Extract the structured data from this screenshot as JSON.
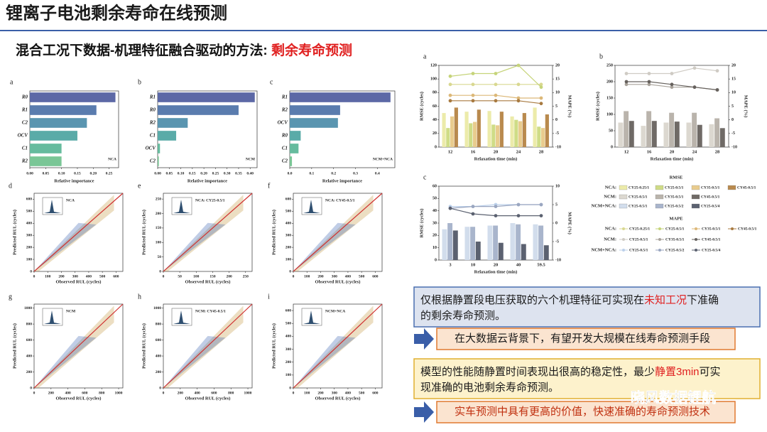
{
  "header": {
    "title": "锂离子电池剩余寿命在线预测"
  },
  "subtitle": {
    "main": "混合工况下数据-机理特征融合驱动的方法: ",
    "highlight": "剩余寿命预测"
  },
  "importance_xlabel": "Relative importance",
  "importance_panels": [
    {
      "letter": "a",
      "tag": "NCA",
      "features": [
        "R0",
        "R1",
        "C2",
        "OCV",
        "C1",
        "R2"
      ],
      "values": [
        0.27,
        0.21,
        0.18,
        0.15,
        0.1,
        0.1
      ],
      "colors": [
        "#5c68a6",
        "#5a7cae",
        "#5a95b0",
        "#5aaba8",
        "#66bb9e",
        "#7ac696"
      ],
      "xlim": [
        0,
        0.28
      ],
      "xticks": [
        {
          "value": 0,
          "label": "0.00"
        },
        {
          "value": 0.05,
          "label": "0.05"
        },
        {
          "value": 0.1,
          "label": "0.10"
        },
        {
          "value": 0.15,
          "label": "0.15"
        },
        {
          "value": 0.2,
          "label": "0.20"
        },
        {
          "value": 0.25,
          "label": "0.25"
        }
      ]
    },
    {
      "letter": "b",
      "tag": "NCM",
      "features": [
        "R1",
        "R0",
        "R2",
        "C1",
        "OCV",
        "C2"
      ],
      "values": [
        0.42,
        0.35,
        0.13,
        0.08,
        0.01,
        0.005
      ],
      "colors": [
        "#5c68a6",
        "#5a7cae",
        "#5a95b0",
        "#5aaba8",
        "#66bb9e",
        "#7ac696"
      ],
      "xlim": [
        0,
        0.43
      ],
      "xticks": [
        {
          "value": 0,
          "label": "0.00"
        },
        {
          "value": 0.05,
          "label": "0.05"
        },
        {
          "value": 0.1,
          "label": "0.10"
        },
        {
          "value": 0.15,
          "label": "0.15"
        },
        {
          "value": 0.2,
          "label": "0.20"
        },
        {
          "value": 0.25,
          "label": "0.25"
        },
        {
          "value": 0.3,
          "label": "0.30"
        },
        {
          "value": 0.35,
          "label": "0.35"
        },
        {
          "value": 0.4,
          "label": "0.40"
        }
      ]
    },
    {
      "letter": "c",
      "tag": "NCM+NCA",
      "features": [
        "R1",
        "R2",
        "OCV",
        "R0",
        "C1",
        "C2"
      ],
      "values": [
        0.46,
        0.23,
        0.22,
        0.05,
        0.04,
        0.01
      ],
      "colors": [
        "#5c68a6",
        "#5a7cae",
        "#5a95b0",
        "#5aaba8",
        "#66bb9e",
        "#7ac696"
      ],
      "xlim": [
        0,
        0.48
      ],
      "xticks": [
        {
          "value": 0,
          "label": "0.0"
        },
        {
          "value": 0.1,
          "label": "0.1"
        },
        {
          "value": 0.2,
          "label": "0.2"
        },
        {
          "value": 0.3,
          "label": "0.3"
        },
        {
          "value": 0.4,
          "label": "0.4"
        }
      ]
    }
  ],
  "scatter_axes": {
    "xlabel": "Observed RUL (cycles)",
    "ylabel": "Predicted RUL (cycles)"
  },
  "scatter_panels": [
    {
      "letter": "d",
      "tag": "NCA",
      "xlim": [
        0,
        650
      ],
      "ylim": [
        0,
        650
      ],
      "xticks": [
        0,
        100,
        200,
        300,
        400,
        500,
        600
      ],
      "yticks": [
        0,
        100,
        200,
        300,
        400,
        500,
        600
      ]
    },
    {
      "letter": "e",
      "tag": "NCA: CY25-0.5/1",
      "xlim": [
        0,
        270
      ],
      "ylim": [
        0,
        270
      ],
      "xticks": [
        0,
        50,
        100,
        150,
        200,
        250
      ],
      "yticks": [
        0,
        50,
        100,
        150,
        200,
        250
      ]
    },
    {
      "letter": "f",
      "tag": "NCA: CY45-0.5/1",
      "xlim": [
        0,
        650
      ],
      "ylim": [
        0,
        650
      ],
      "xticks": [
        0,
        100,
        200,
        300,
        400,
        500,
        600
      ],
      "yticks": [
        0,
        100,
        200,
        300,
        400,
        500,
        600
      ]
    },
    {
      "letter": "g",
      "tag": "NCM",
      "xlim": [
        0,
        1050
      ],
      "ylim": [
        0,
        1050
      ],
      "xticks": [
        0,
        200,
        400,
        600,
        800,
        1000
      ],
      "yticks": [
        0,
        200,
        400,
        600,
        800,
        1000
      ]
    },
    {
      "letter": "h",
      "tag": "NCM: CY45-0.5/1",
      "xlim": [
        0,
        1050
      ],
      "ylim": [
        0,
        1050
      ],
      "xticks": [
        0,
        200,
        400,
        600,
        800,
        1000
      ],
      "yticks": [
        0,
        200,
        400,
        600,
        800,
        1000
      ]
    },
    {
      "letter": "i",
      "tag": "NCM+NCA",
      "xlim": [
        0,
        650
      ],
      "ylim": [
        0,
        650
      ],
      "xticks": [
        0,
        100,
        200,
        300,
        400,
        500,
        600
      ],
      "yticks": [
        0,
        100,
        200,
        300,
        400,
        500,
        600
      ]
    }
  ],
  "combo_axes": {
    "xlabel": "Relaxation time (min)",
    "ylabel": "RMSE (cycles)",
    "y2label": "MAPE (%)"
  },
  "combo_panels": [
    {
      "letter": "a",
      "categories": [
        "12",
        "16",
        "20",
        "24",
        "28"
      ],
      "ylim": [
        0,
        120
      ],
      "yticks": [
        0,
        20,
        40,
        60,
        80,
        100,
        120
      ],
      "y2lim": [
        -10,
        20
      ],
      "y2ticks": [
        -10,
        -5,
        0,
        5,
        10,
        15,
        20
      ],
      "bar_series": [
        {
          "name": "CY25-0.25/1",
          "color": "#ecebaa",
          "values": [
            50,
            52,
            53,
            45,
            58
          ]
        },
        {
          "name": "CY25-0.5/1",
          "color": "#cfdc86",
          "values": [
            28,
            35,
            33,
            40,
            30
          ]
        },
        {
          "name": "CY35-0.5/1",
          "color": "#e9cc8e",
          "values": [
            45,
            37,
            32,
            38,
            28
          ]
        },
        {
          "name": "CY45-0.5/1",
          "color": "#b98a4e",
          "values": [
            58,
            55,
            52,
            50,
            48
          ]
        }
      ],
      "line_series": [
        {
          "name": "CY25-0.25/1",
          "color": "#d9d890",
          "values": [
            13,
            13,
            13,
            13,
            13
          ]
        },
        {
          "name": "CY25-0.5/1",
          "color": "#c6d47a",
          "values": [
            16,
            17,
            17,
            20,
            12
          ]
        },
        {
          "name": "CY35-0.5/1",
          "color": "#dcb878",
          "values": [
            9,
            9,
            9,
            8,
            8
          ]
        },
        {
          "name": "CY45-0.5/1",
          "color": "#a87a40",
          "values": [
            7,
            7,
            7,
            7,
            6
          ]
        }
      ]
    },
    {
      "letter": "b",
      "categories": [
        "12",
        "16",
        "20",
        "24",
        "28"
      ],
      "ylim": [
        0,
        250
      ],
      "yticks": [
        0,
        50,
        100,
        150,
        200,
        250
      ],
      "y2lim": [
        -10,
        20
      ],
      "y2ticks": [
        -10,
        -5,
        0,
        5,
        10,
        15,
        20
      ],
      "bar_series": [
        {
          "name": "CY25-0.5/1",
          "color": "#dcd8d0",
          "values": [
            75,
            65,
            75,
            75,
            70
          ]
        },
        {
          "name": "CY35-0.5/1",
          "color": "#bab4ac",
          "values": [
            110,
            110,
            105,
            105,
            88
          ]
        },
        {
          "name": "CY45-0.5/1",
          "color": "#6f6a66",
          "values": [
            80,
            80,
            78,
            68,
            58
          ]
        }
      ],
      "line_series": [
        {
          "name": "CY25-0.5/1",
          "color": "#cfcbc4",
          "values": [
            17,
            17,
            17,
            19,
            18
          ]
        },
        {
          "name": "CY35-0.5/1",
          "color": "#a8a29a",
          "values": [
            13,
            13,
            12,
            12,
            11
          ]
        },
        {
          "name": "CY45-0.5/1",
          "color": "#66615d",
          "values": [
            14,
            14,
            13,
            12,
            11
          ]
        }
      ]
    },
    {
      "letter": "c",
      "categories": [
        "3",
        "10",
        "20",
        "40",
        "59.5"
      ],
      "ylim": [
        0,
        60
      ],
      "yticks": [
        0,
        10,
        20,
        30,
        40,
        50,
        60
      ],
      "y2lim": [
        -10,
        10
      ],
      "y2ticks": [
        -10,
        -5,
        0,
        5,
        10
      ],
      "bar_series": [
        {
          "name": "CY25-0.5/1",
          "color": "#d2ddec",
          "values": [
            25,
            27,
            28,
            30,
            29
          ]
        },
        {
          "name": "CY25-0.5/2",
          "color": "#a9b5cc",
          "values": [
            30,
            27,
            28,
            29,
            28
          ]
        },
        {
          "name": "CY25-0.5/4",
          "color": "#5b6170",
          "values": [
            24,
            15,
            14,
            13,
            12
          ]
        }
      ],
      "line_series": [
        {
          "name": "CY25-0.5/1",
          "color": "#bcd0ea",
          "values": [
            4.5,
            4.5,
            5,
            5,
            5
          ]
        },
        {
          "name": "CY25-0.5/2",
          "color": "#9aa6c0",
          "values": [
            4,
            4.5,
            4.5,
            5,
            5
          ]
        },
        {
          "name": "CY25-0.5/4",
          "color": "#5b6170",
          "values": [
            4,
            2.5,
            2,
            2,
            2
          ]
        }
      ]
    }
  ],
  "legend": {
    "rmse_title": "RMSE",
    "mape_title": "MAPE",
    "groups": [
      "NCA:",
      "NCM:",
      "NCM+NCA:"
    ]
  },
  "notes": [
    {
      "lines": [
        [
          {
            "text": "仅根据静置段电压获取的六个机理特征可实现在"
          },
          {
            "text": "未知工况",
            "highlight": true
          },
          {
            "text": "下准确"
          }
        ],
        [
          {
            "text": "的剩余寿命预测。"
          }
        ]
      ]
    },
    {
      "lines": [
        [
          {
            "text": "在大数据云背景下，有望开发大规模在线寿命预测手段"
          }
        ]
      ]
    },
    {
      "lines": [
        [
          {
            "text": "模型的性能随静置时间表现出很高的稳定性，最少"
          },
          {
            "text": "静置3min",
            "highlight": true
          },
          {
            "text": "可实"
          }
        ],
        [
          {
            "text": "现准确的电池剩余寿命预测。"
          }
        ]
      ]
    },
    {
      "lines": [
        [
          {
            "text": "实车预测中具有更高的价值，快速准确的寿命预测技术"
          }
        ]
      ]
    }
  ],
  "watermark": "晓风数据锂航"
}
